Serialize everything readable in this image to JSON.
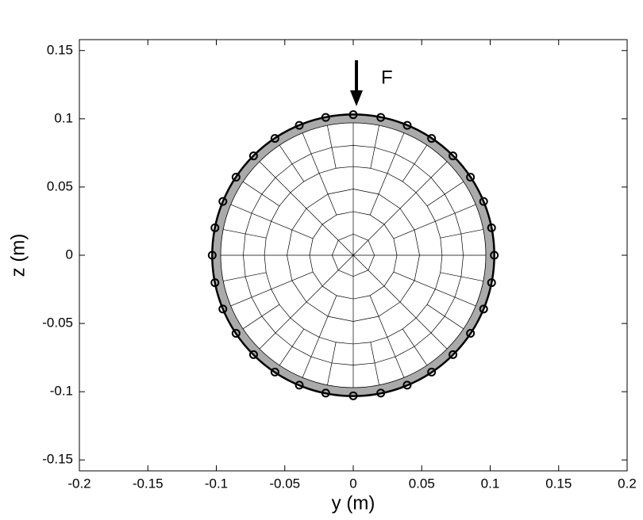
{
  "chart_data": {
    "type": "scatter",
    "xlabel": "y (m)",
    "ylabel": "z (m)",
    "annotation": "F",
    "x": [
      0.103,
      0.101,
      0.0952,
      0.0856,
      0.0728,
      0.0572,
      0.0394,
      0.0201,
      0,
      -0.0201,
      -0.0394,
      -0.0572,
      -0.0728,
      -0.0856,
      -0.0952,
      -0.101,
      -0.103,
      -0.101,
      -0.0952,
      -0.0856,
      -0.0728,
      -0.0572,
      -0.0394,
      -0.0201,
      0,
      0.0201,
      0.0394,
      0.0572,
      0.0728,
      0.0856,
      0.0952,
      0.101
    ],
    "values": [
      0,
      0.0201,
      0.0394,
      0.0572,
      0.0728,
      0.0856,
      0.0952,
      0.101,
      0.103,
      0.101,
      0.0952,
      0.0856,
      0.0728,
      0.0572,
      0.0394,
      0.0201,
      0,
      -0.0201,
      -0.0394,
      -0.0572,
      -0.0728,
      -0.0856,
      -0.0952,
      -0.101,
      -0.103,
      -0.101,
      -0.0952,
      -0.0856,
      -0.0728,
      -0.0572,
      -0.0394,
      -0.0201
    ],
    "color": "#000000",
    "xlim": [
      -0.2,
      0.2
    ],
    "ylim": [
      -0.158,
      0.158
    ],
    "xticks": [
      -0.2,
      -0.15,
      -0.1,
      -0.05,
      0,
      0.05,
      0.1,
      0.15,
      0.2
    ],
    "yticks": [
      -0.15,
      -0.1,
      -0.05,
      0,
      0.05,
      0.1,
      0.15
    ],
    "grid": false
  }
}
